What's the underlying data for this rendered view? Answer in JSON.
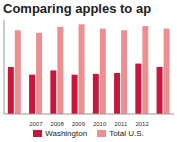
{
  "chart_data": {
    "type": "bar",
    "title": "Comparing apples to ap",
    "categories": [
      null,
      "2007",
      "2008",
      "2009",
      "2010",
      "2011",
      "2012",
      null
    ],
    "series": [
      {
        "name": "Washington",
        "color": "#c8173a",
        "values": [
          55,
          46,
          51,
          46,
          47,
          48,
          59,
          55
        ]
      },
      {
        "name": "Total U.S.",
        "color": "#ee8f8f",
        "values": [
          98,
          95,
          102,
          105,
          100,
          98,
          103,
          100
        ]
      }
    ],
    "ylim": [
      0,
      110
    ],
    "tick_labels": "x",
    "grid": false
  }
}
